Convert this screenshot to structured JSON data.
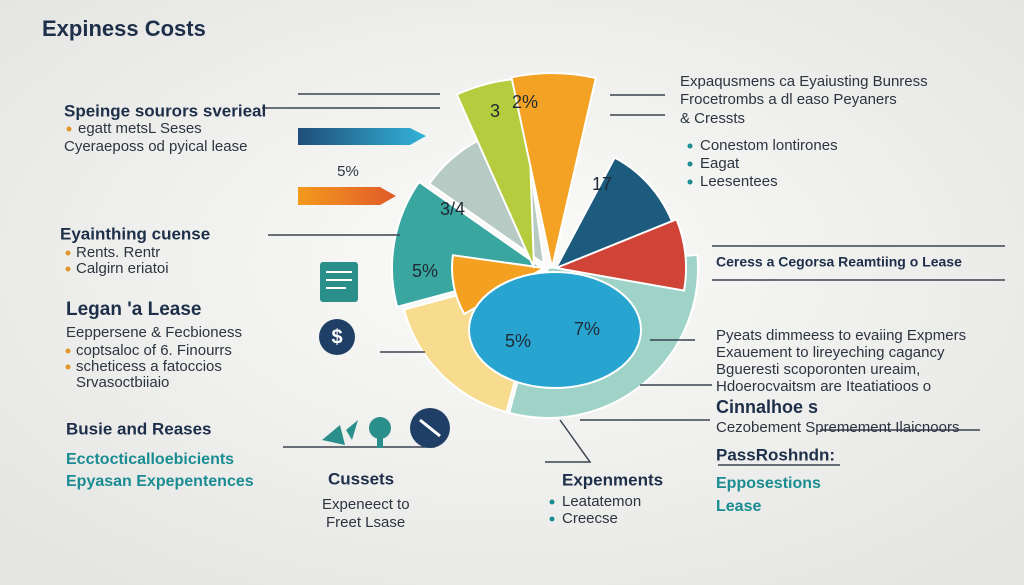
{
  "title": "Expiness Costs",
  "left": {
    "block1": {
      "heading": "Speinge sourors sverieal",
      "lines": [
        "egatt metsL Seses",
        "Cyeraeposs od pyical lease"
      ]
    },
    "arrow_label": "5%",
    "block2": {
      "heading": "Eyainthing cuense",
      "lines": [
        "Rents. Rentr",
        "Calgirn eriatoi"
      ]
    },
    "block3": {
      "heading": "Legan 'a Lease",
      "subheading": "Eeppersene & Fecbioness",
      "lines": [
        "coptsaloc of 6. Finourrs",
        "scheticess a fatoccios",
        "Srvasoctbiiaio"
      ]
    },
    "block4": {
      "heading": "Busie and Reases",
      "lines": [
        "Ecctocticalloebicients",
        "Epyasan Expepentences"
      ]
    }
  },
  "pie_labels": [
    "3",
    "2%",
    "17",
    "3/4",
    "5%",
    "5%",
    "7%"
  ],
  "bottom": {
    "center": {
      "heading": "Cussets",
      "lines": [
        "Expeneect to",
        "Freet Lsase"
      ]
    },
    "right": {
      "heading": "Expenments",
      "lines": [
        "Leatatemon",
        "Creecse"
      ]
    }
  },
  "right": {
    "block1": {
      "lines": [
        "Expaqusmens ca Eyaiusting Bunress",
        "Frocetrombs a dl easo Peyaners",
        "& Cressts"
      ],
      "items": [
        "Conestom lontirones",
        "Eagat",
        "Leesentees"
      ]
    },
    "block2": {
      "heading": "Ceress a Cegorsa Reamtiing o Lease"
    },
    "block3": {
      "lines": [
        "Pyeats dimmeess to evaiing Expmers",
        "Exauement to lireyeching cagancy",
        "Bgueresti scoporonten ureaim,",
        "Hdoerocvaitsm are Iteatiatioos o"
      ]
    },
    "block4": {
      "heading": "Cinnalhoe s",
      "lines": [
        "Cezobement Spremement Ilaicnoors"
      ]
    },
    "block5": {
      "heading": "PassRoshndn:",
      "lines": [
        "Epposestions",
        "Lease"
      ]
    }
  }
}
